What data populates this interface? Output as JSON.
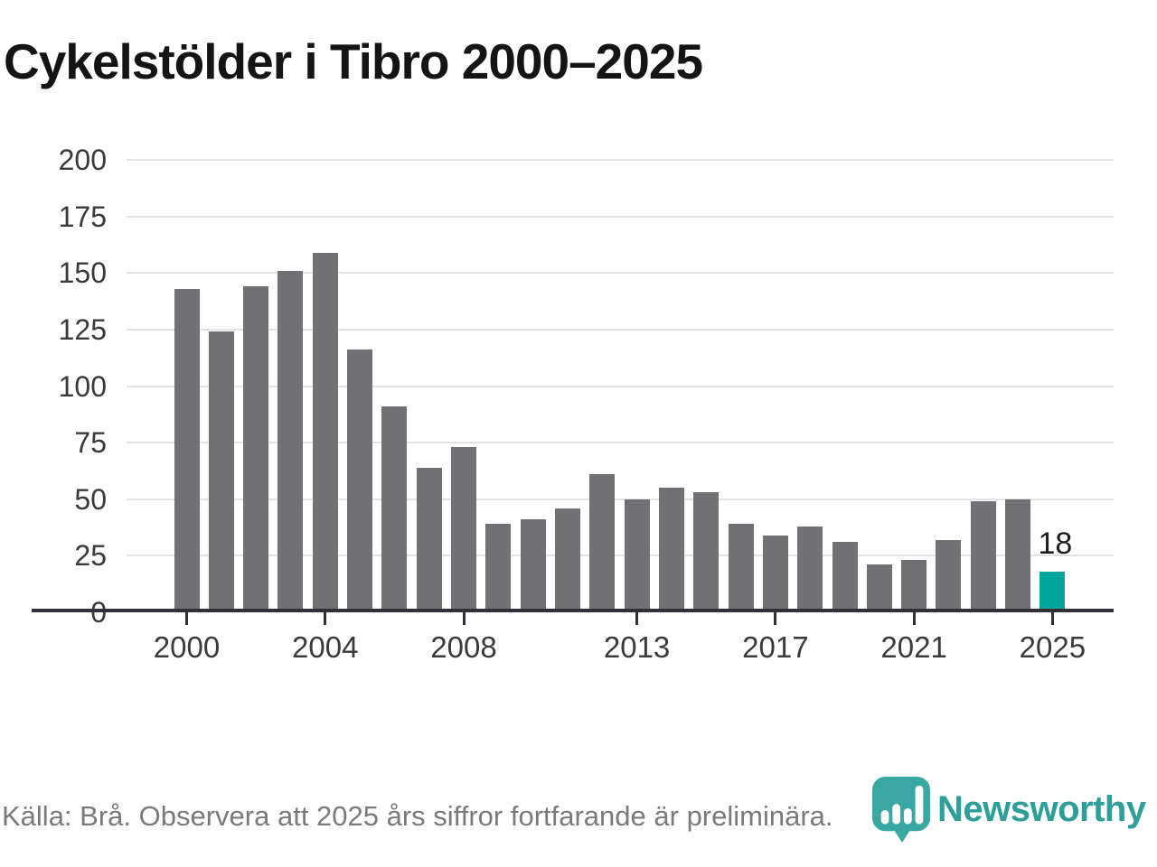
{
  "title": "Cykelstölder i Tibro 2000–2025",
  "footer": {
    "source_text": "Källa: Brå. Observera att 2025 års siffror fortfarande är preliminära.",
    "brand_name": "Newsworthy"
  },
  "colors": {
    "bar": "#717175",
    "highlight": "#00a69b",
    "gridline": "#e2e2e2",
    "axis": "#303036",
    "title_text": "#141414",
    "axis_label_text": "#3a3a3a",
    "footer_text": "#7a7a7a",
    "logo_teal": "#3aa8a2",
    "logo_text_teal": "#2e9e99"
  },
  "chart_data": {
    "type": "bar",
    "title": "Cykelstölder i Tibro 2000–2025",
    "categories": [
      2000,
      2001,
      2002,
      2003,
      2004,
      2005,
      2006,
      2007,
      2008,
      2009,
      2010,
      2011,
      2012,
      2013,
      2014,
      2015,
      2016,
      2017,
      2018,
      2019,
      2020,
      2021,
      2022,
      2023,
      2024,
      2025
    ],
    "values": [
      143,
      124,
      144,
      151,
      159,
      116,
      91,
      64,
      73,
      39,
      41,
      46,
      61,
      50,
      55,
      53,
      39,
      34,
      38,
      31,
      21,
      23,
      32,
      49,
      50,
      18
    ],
    "highlight_index": 25,
    "highlight_value_label": "18",
    "ylim": [
      0,
      200
    ],
    "yticks": [
      0,
      25,
      50,
      75,
      100,
      125,
      150,
      175,
      200
    ],
    "xtick_labels": [
      "2000",
      "2004",
      "2008",
      "2013",
      "2017",
      "2021",
      "2025"
    ],
    "xtick_years": [
      2000,
      2004,
      2008,
      2013,
      2017,
      2021,
      2025
    ],
    "grid": "horizontal-only",
    "legend": "none"
  }
}
